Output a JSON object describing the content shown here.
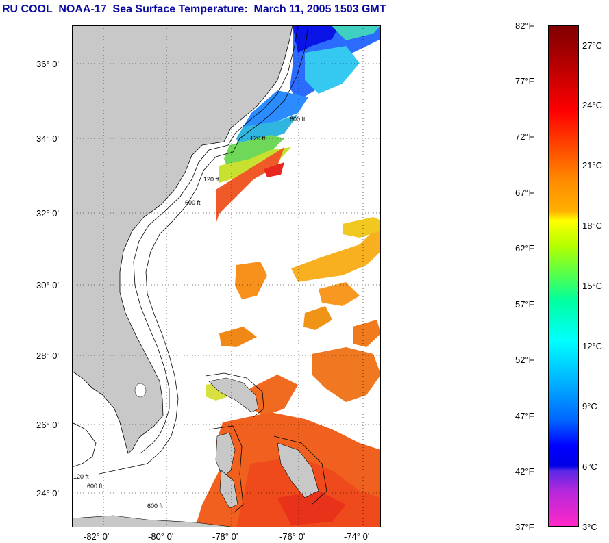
{
  "title": "RU COOL  NOAA-17  Sea Surface Temperature:  March 11, 2005 1503 GMT",
  "lat_labels": [
    "36° 0'",
    "34° 0'",
    "32° 0'",
    "30° 0'",
    "28° 0'",
    "26° 0'",
    "24° 0'"
  ],
  "lon_labels": [
    "-82° 0'",
    "-80° 0'",
    "-78° 0'",
    "-76° 0'",
    "-74° 0'"
  ],
  "isobath_labels": [
    "120 ft",
    "600 ft"
  ],
  "colorbar": {
    "fahrenheit": [
      "82°F",
      "77°F",
      "72°F",
      "67°F",
      "62°F",
      "57°F",
      "52°F",
      "47°F",
      "42°F",
      "37°F"
    ],
    "celsius": [
      "27°C",
      "24°C",
      "21°C",
      "18°C",
      "15°C",
      "12°C",
      "9°C",
      "6°C",
      "3°C"
    ]
  },
  "colors": {
    "land": "#c8c8c8",
    "ocean_no_data": "#ffffff",
    "title": "#0a0aa0"
  }
}
